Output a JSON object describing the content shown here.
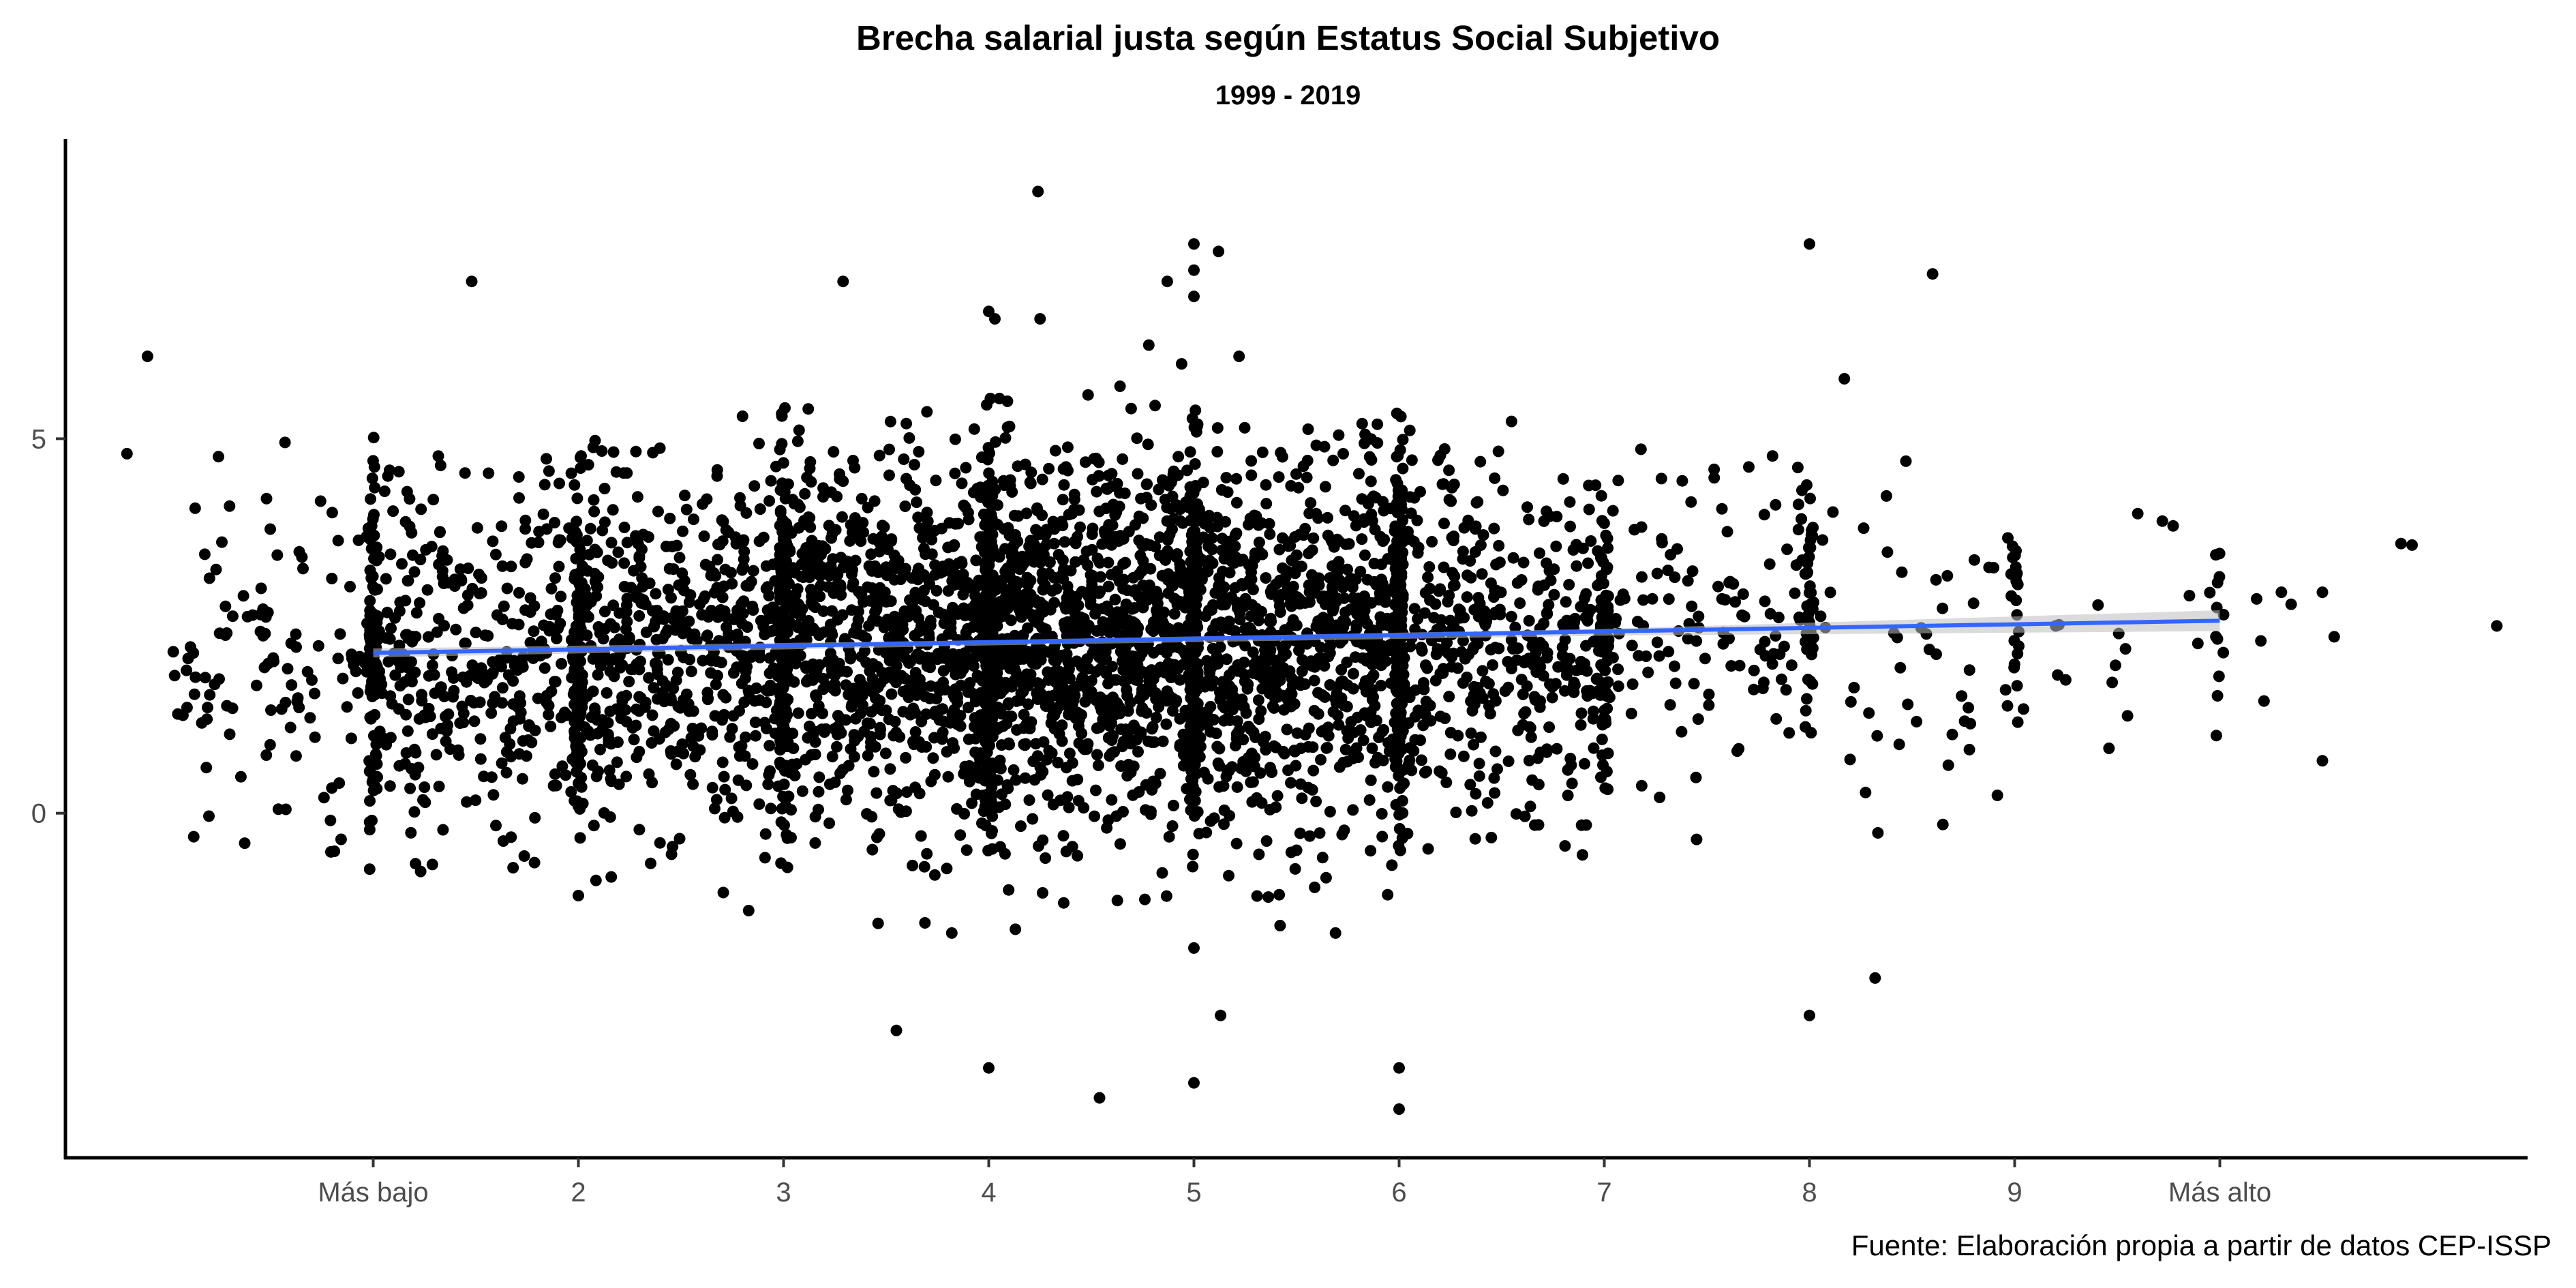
{
  "chart_data": {
    "type": "scatter",
    "title": "Brecha salarial justa según Estatus Social Subjetivo",
    "subtitle": "1999 - 2019",
    "caption": "Fuente: Elaboración propia a partir de datos CEP-ISSP",
    "xlabel": "",
    "ylabel": "",
    "xlim": [
      -0.5,
      11.5
    ],
    "ylim": [
      -4.6,
      9.0
    ],
    "grid": false,
    "legend": "none",
    "x_ticks": [
      {
        "value": 1,
        "label": "Más bajo"
      },
      {
        "value": 2,
        "label": "2"
      },
      {
        "value": 3,
        "label": "3"
      },
      {
        "value": 4,
        "label": "4"
      },
      {
        "value": 5,
        "label": "5"
      },
      {
        "value": 6,
        "label": "6"
      },
      {
        "value": 7,
        "label": "7"
      },
      {
        "value": 8,
        "label": "8"
      },
      {
        "value": 9,
        "label": "9"
      },
      {
        "value": 10,
        "label": "Más alto"
      }
    ],
    "y_ticks": [
      {
        "value": 0,
        "label": "0"
      },
      {
        "value": 5,
        "label": "5"
      }
    ],
    "series": [
      {
        "type": "scatter",
        "color": "#000000",
        "point_groups": [
          {
            "x": 1,
            "jitter": 0.02,
            "count": 110,
            "mean": 2.1,
            "sd": 1.15,
            "min": -0.95,
            "max": 5.3
          },
          {
            "x": 2,
            "jitter": 0.02,
            "count": 120,
            "mean": 2.2,
            "sd": 1.1,
            "min": -0.5,
            "max": 4.95
          },
          {
            "x": 3,
            "jitter": 0.02,
            "count": 160,
            "mean": 2.25,
            "sd": 1.2,
            "min": -0.9,
            "max": 5.5
          },
          {
            "x": 4,
            "jitter": 0.02,
            "count": 200,
            "mean": 2.3,
            "sd": 1.25,
            "min": -1.1,
            "max": 5.95
          },
          {
            "x": 5,
            "jitter": 0.02,
            "count": 240,
            "mean": 2.3,
            "sd": 1.25,
            "min": -0.8,
            "max": 5.4
          },
          {
            "x": 6,
            "jitter": 0.02,
            "count": 190,
            "mean": 2.3,
            "sd": 1.2,
            "min": -1.0,
            "max": 5.45
          },
          {
            "x": 7,
            "jitter": 0.02,
            "count": 90,
            "mean": 2.4,
            "sd": 1.05,
            "min": 0.2,
            "max": 5.4
          },
          {
            "x": 8,
            "jitter": 0.02,
            "count": 45,
            "mean": 2.4,
            "sd": 1.1,
            "min": 0.0,
            "max": 4.4
          },
          {
            "x": 9,
            "jitter": 0.02,
            "count": 22,
            "mean": 2.5,
            "sd": 0.8,
            "min": 0.7,
            "max": 3.6
          },
          {
            "x": 10,
            "jitter": 0.02,
            "count": 12,
            "mean": 2.3,
            "sd": 0.9,
            "min": 0.7,
            "max": 3.7
          },
          {
            "x": 0.5,
            "jitter": 0.48,
            "count": 110,
            "mean": 2.1,
            "sd": 1.15,
            "min": -0.6,
            "max": 5.0
          },
          {
            "x": 1.5,
            "jitter": 0.48,
            "count": 330,
            "mean": 2.15,
            "sd": 1.15,
            "min": -0.8,
            "max": 4.8
          },
          {
            "x": 2.5,
            "jitter": 0.48,
            "count": 480,
            "mean": 2.2,
            "sd": 1.15,
            "min": -1.1,
            "max": 5.1
          },
          {
            "x": 3.5,
            "jitter": 0.48,
            "count": 720,
            "mean": 2.25,
            "sd": 1.2,
            "min": -1.5,
            "max": 5.4
          },
          {
            "x": 4.5,
            "jitter": 0.48,
            "count": 900,
            "mean": 2.3,
            "sd": 1.2,
            "min": -1.2,
            "max": 5.6
          },
          {
            "x": 5.5,
            "jitter": 0.48,
            "count": 720,
            "mean": 2.3,
            "sd": 1.2,
            "min": -1.2,
            "max": 5.2
          },
          {
            "x": 6.5,
            "jitter": 0.48,
            "count": 380,
            "mean": 2.35,
            "sd": 1.15,
            "min": -0.6,
            "max": 5.3
          },
          {
            "x": 7.5,
            "jitter": 0.48,
            "count": 120,
            "mean": 2.4,
            "sd": 1.1,
            "min": -0.4,
            "max": 4.9
          },
          {
            "x": 8.5,
            "jitter": 0.48,
            "count": 45,
            "mean": 2.4,
            "sd": 1.15,
            "min": -0.3,
            "max": 4.8
          },
          {
            "x": 9.5,
            "jitter": 0.48,
            "count": 14,
            "mean": 2.5,
            "sd": 1.0,
            "min": 0.6,
            "max": 4.0
          },
          {
            "x": 10.5,
            "jitter": 0.45,
            "count": 6,
            "mean": 2.4,
            "sd": 1.0,
            "min": 0.7,
            "max": 3.7
          }
        ],
        "points": [
          [
            -0.1,
            6.1
          ],
          [
            0.57,
            4.95
          ],
          [
            -0.2,
            4.8
          ],
          [
            0.3,
            4.1
          ],
          [
            0.48,
            4.2
          ],
          [
            1.48,
            7.1
          ],
          [
            2.8,
            5.3
          ],
          [
            3.29,
            7.1
          ],
          [
            4.0,
            6.7
          ],
          [
            4.03,
            6.6
          ],
          [
            4.24,
            8.3
          ],
          [
            4.25,
            6.6
          ],
          [
            4.78,
            6.25
          ],
          [
            4.87,
            7.1
          ],
          [
            5.0,
            7.6
          ],
          [
            5.0,
            7.25
          ],
          [
            5.0,
            6.9
          ],
          [
            5.12,
            7.5
          ],
          [
            5.22,
            6.1
          ],
          [
            4.94,
            6.0
          ],
          [
            4.64,
            5.7
          ],
          [
            5.82,
            5.2
          ],
          [
            8.0,
            7.6
          ],
          [
            8.6,
            7.2
          ],
          [
            8.17,
            5.8
          ],
          [
            8.47,
            4.7
          ],
          [
            9.6,
            4.0
          ],
          [
            9.72,
            3.9
          ],
          [
            10.3,
            2.95
          ],
          [
            10.5,
            2.95
          ],
          [
            11.35,
            2.5
          ],
          [
            10.5,
            0.7
          ],
          [
            9.55,
            1.3
          ],
          [
            9.2,
            2.5
          ],
          [
            10.2,
            2.3
          ],
          [
            3.55,
            -2.9
          ],
          [
            4.0,
            -3.4
          ],
          [
            4.54,
            -3.8
          ],
          [
            5.0,
            -3.6
          ],
          [
            5.13,
            -2.7
          ],
          [
            6.0,
            -3.4
          ],
          [
            6.0,
            -3.95
          ],
          [
            8.0,
            -2.7
          ],
          [
            8.32,
            -2.2
          ],
          [
            5.0,
            -1.8
          ],
          [
            3.82,
            -1.6
          ],
          [
            4.13,
            -1.55
          ],
          [
            5.42,
            -1.5
          ],
          [
            5.69,
            -1.6
          ],
          [
            2.83,
            -1.3
          ],
          [
            2.0,
            -1.1
          ],
          [
            2.16,
            -0.85
          ],
          [
            8.65,
            -0.15
          ],
          [
            7.45,
            -0.35
          ]
        ]
      }
    ],
    "trend_line": {
      "label": "",
      "color": "#3366FF",
      "band_color": "#bdbdbd",
      "x": [
        1,
        10
      ],
      "y": [
        2.14,
        2.57
      ],
      "se_band": [
        [
          1,
          2.08,
          2.2
        ],
        [
          4,
          2.24,
          2.31
        ],
        [
          7,
          2.37,
          2.46
        ],
        [
          10,
          2.43,
          2.71
        ]
      ]
    }
  }
}
